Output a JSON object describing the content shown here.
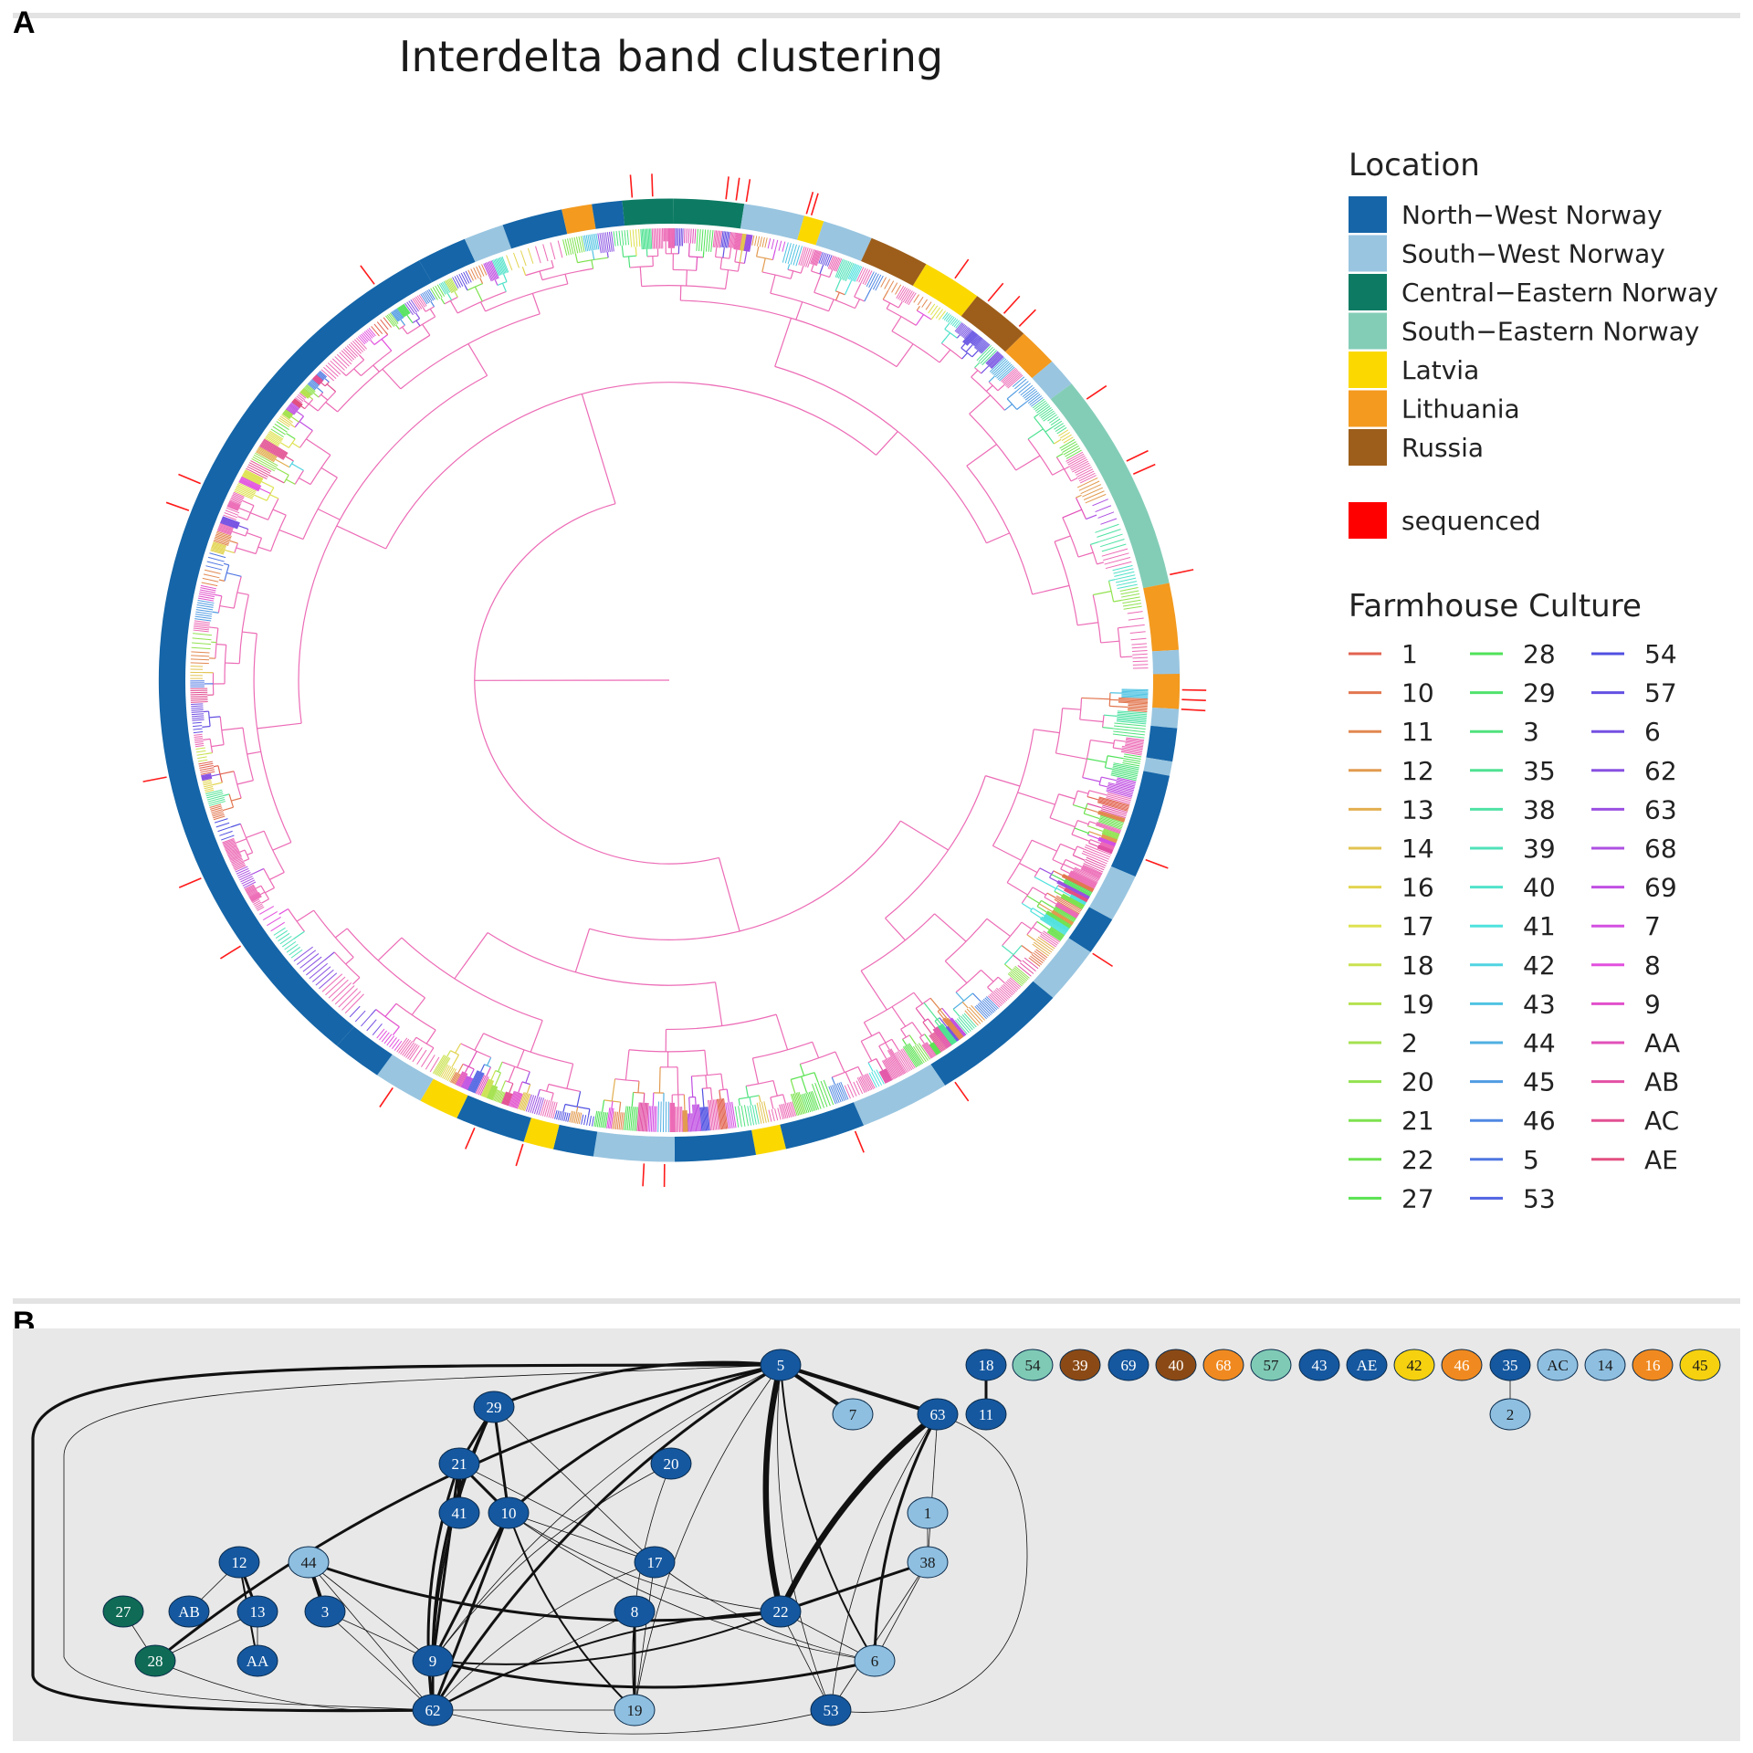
{
  "panelA": {
    "letter": "A",
    "title": "Interdelta band clustering",
    "location_legend": {
      "title": "Location",
      "items": [
        {
          "label": "North−West Norway",
          "color": "#1565a8"
        },
        {
          "label": "South−West Norway",
          "color": "#99c5e0"
        },
        {
          "label": "Central−Eastern Norway",
          "color": "#0d7b63"
        },
        {
          "label": "South−Eastern Norway",
          "color": "#83cdb7"
        },
        {
          "label": "Latvia",
          "color": "#fbd800"
        },
        {
          "label": "Lithuania",
          "color": "#f39a1f"
        },
        {
          "label": "Russia",
          "color": "#9d5e1b"
        }
      ],
      "sequenced": {
        "label": "sequenced",
        "color": "#ff0000"
      }
    },
    "farmhouse_legend": {
      "title": "Farmhouse Culture",
      "columns": [
        [
          "1",
          "10",
          "11",
          "12",
          "13",
          "14",
          "16",
          "17",
          "18",
          "19",
          "2",
          "20",
          "21",
          "22",
          "27"
        ],
        [
          "28",
          "29",
          "3",
          "35",
          "38",
          "39",
          "40",
          "41",
          "42",
          "43",
          "44",
          "45",
          "46",
          "5",
          "53"
        ],
        [
          "54",
          "57",
          "6",
          "62",
          "63",
          "68",
          "69",
          "7",
          "8",
          "9",
          "AA",
          "AB",
          "AC",
          "AE"
        ]
      ]
    }
  },
  "panelB": {
    "letter": "B",
    "nodes": [
      {
        "id": "5",
        "loc": "NW"
      },
      {
        "id": "29",
        "loc": "NW"
      },
      {
        "id": "7",
        "loc": "SW"
      },
      {
        "id": "63",
        "loc": "NW"
      },
      {
        "id": "18",
        "loc": "NW"
      },
      {
        "id": "11",
        "loc": "NW"
      },
      {
        "id": "21",
        "loc": "NW"
      },
      {
        "id": "20",
        "loc": "NW"
      },
      {
        "id": "41",
        "loc": "NW"
      },
      {
        "id": "10",
        "loc": "NW"
      },
      {
        "id": "1",
        "loc": "SW"
      },
      {
        "id": "12",
        "loc": "NW"
      },
      {
        "id": "44",
        "loc": "SW"
      },
      {
        "id": "17",
        "loc": "NW"
      },
      {
        "id": "38",
        "loc": "SW"
      },
      {
        "id": "27",
        "loc": "CE"
      },
      {
        "id": "AB",
        "loc": "NW"
      },
      {
        "id": "13",
        "loc": "NW"
      },
      {
        "id": "3",
        "loc": "NW"
      },
      {
        "id": "8",
        "loc": "NW"
      },
      {
        "id": "22",
        "loc": "NW"
      },
      {
        "id": "28",
        "loc": "CE"
      },
      {
        "id": "AA",
        "loc": "NW"
      },
      {
        "id": "9",
        "loc": "NW"
      },
      {
        "id": "6",
        "loc": "SW"
      },
      {
        "id": "62",
        "loc": "NW"
      },
      {
        "id": "19",
        "loc": "SW"
      },
      {
        "id": "53",
        "loc": "NW"
      },
      {
        "id": "54",
        "loc": "SE"
      },
      {
        "id": "39",
        "loc": "RU"
      },
      {
        "id": "69",
        "loc": "NW"
      },
      {
        "id": "40",
        "loc": "RU"
      },
      {
        "id": "68",
        "loc": "LT"
      },
      {
        "id": "57",
        "loc": "SE"
      },
      {
        "id": "43",
        "loc": "NW"
      },
      {
        "id": "AE",
        "loc": "NW"
      },
      {
        "id": "42",
        "loc": "LV"
      },
      {
        "id": "46",
        "loc": "LT"
      },
      {
        "id": "35",
        "loc": "NW"
      },
      {
        "id": "AC",
        "loc": "SW"
      },
      {
        "id": "14",
        "loc": "SW"
      },
      {
        "id": "16",
        "loc": "LT"
      },
      {
        "id": "45",
        "loc": "LV"
      },
      {
        "id": "2",
        "loc": "SW"
      }
    ],
    "edges": [
      [
        "5",
        "29",
        3
      ],
      [
        "5",
        "7",
        4
      ],
      [
        "5",
        "63",
        4
      ],
      [
        "5",
        "22",
        6
      ],
      [
        "5",
        "62",
        3
      ],
      [
        "5",
        "10",
        3
      ],
      [
        "5",
        "6",
        2
      ],
      [
        "5",
        "53",
        1
      ],
      [
        "5",
        "19",
        1
      ],
      [
        "5",
        "28",
        3
      ],
      [
        "5",
        "9",
        1
      ],
      [
        "29",
        "21",
        3
      ],
      [
        "29",
        "10",
        3
      ],
      [
        "29",
        "9",
        3
      ],
      [
        "29",
        "62",
        2
      ],
      [
        "29",
        "17",
        1
      ],
      [
        "21",
        "41",
        4
      ],
      [
        "21",
        "10",
        3
      ],
      [
        "21",
        "9",
        3
      ],
      [
        "21",
        "62",
        3
      ],
      [
        "21",
        "17",
        1
      ],
      [
        "10",
        "9",
        3
      ],
      [
        "10",
        "62",
        3
      ],
      [
        "10",
        "19",
        2
      ],
      [
        "10",
        "17",
        1
      ],
      [
        "10",
        "22",
        1
      ],
      [
        "10",
        "6",
        1
      ],
      [
        "63",
        "22",
        6
      ],
      [
        "63",
        "6",
        3
      ],
      [
        "63",
        "53",
        1
      ],
      [
        "63",
        "38",
        1
      ],
      [
        "18",
        "11",
        3
      ],
      [
        "35",
        "2",
        1
      ],
      [
        "1",
        "38",
        1
      ],
      [
        "38",
        "22",
        3
      ],
      [
        "38",
        "6",
        1
      ],
      [
        "38",
        "53",
        1
      ],
      [
        "12",
        "13",
        3
      ],
      [
        "12",
        "AA",
        2
      ],
      [
        "12",
        "AB",
        1
      ],
      [
        "13",
        "28",
        1
      ],
      [
        "13",
        "AA",
        1
      ],
      [
        "44",
        "3",
        4
      ],
      [
        "44",
        "22",
        3
      ],
      [
        "44",
        "9",
        1
      ],
      [
        "44",
        "62",
        1
      ],
      [
        "27",
        "28",
        1
      ],
      [
        "3",
        "9",
        1
      ],
      [
        "3",
        "62",
        1
      ],
      [
        "8",
        "19",
        3
      ],
      [
        "8",
        "62",
        1
      ],
      [
        "9",
        "62",
        3
      ],
      [
        "9",
        "6",
        3
      ],
      [
        "9",
        "22",
        2
      ],
      [
        "62",
        "19",
        1
      ],
      [
        "62",
        "53",
        1
      ],
      [
        "22",
        "62",
        2
      ],
      [
        "22",
        "6",
        1
      ],
      [
        "22",
        "53",
        1
      ],
      [
        "17",
        "6",
        1
      ],
      [
        "17",
        "19",
        1
      ],
      [
        "20",
        "19",
        1
      ],
      [
        "20",
        "9",
        1
      ],
      [
        "17",
        "62",
        1
      ],
      [
        "28",
        "62",
        1
      ]
    ]
  }
}
